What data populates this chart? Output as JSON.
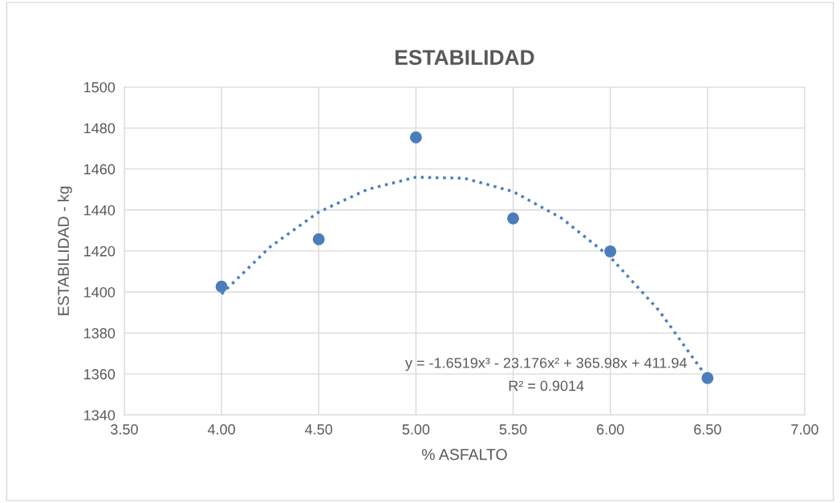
{
  "chart_data": {
    "type": "scatter",
    "title": "ESTABILIDAD",
    "xlabel": "% ASFALTO",
    "ylabel": "ESTABILIDAD - kg",
    "x": [
      4.0,
      4.5,
      5.0,
      5.5,
      6.0,
      6.5
    ],
    "series": [
      {
        "color": "#4a7ebb",
        "marker": "circle",
        "values": [
          1402.6,
          1425.7,
          1475.4,
          1435.9,
          1419.8,
          1358
        ]
      },
      {
        "type": "line",
        "color": "#4a7ebb",
        "line_style": "dotted",
        "marker": "none",
        "x": [
          4.0,
          4.25,
          4.5,
          4.75,
          5.0,
          5.25,
          5.5,
          5.75,
          6.0,
          6.25,
          6.5
        ],
        "values": [
          1399,
          1422,
          1439,
          1450,
          1456,
          1455.5,
          1449,
          1436,
          1417,
          1391,
          1358
        ]
      }
    ],
    "annotations": [
      "y = -1.6519x³ - 23.176x² + 365.98x + 411.94",
      "R² = 0.9014"
    ],
    "xlim": [
      3.5,
      7.0
    ],
    "xticks": [
      {
        "value": 3.5,
        "label": "3.50"
      },
      {
        "value": 4.0,
        "label": "4.00"
      },
      {
        "value": 4.5,
        "label": "4.50"
      },
      {
        "value": 5.0,
        "label": "5.00"
      },
      {
        "value": 5.5,
        "label": "5.50"
      },
      {
        "value": 6.0,
        "label": "6.00"
      },
      {
        "value": 6.5,
        "label": "6.50"
      },
      {
        "value": 7.0,
        "label": "7.00"
      }
    ],
    "ylim": [
      1340,
      1500
    ],
    "yticks": [
      1340,
      1360,
      1380,
      1400,
      1420,
      1440,
      1460,
      1480,
      1500
    ],
    "grid": true,
    "legend": false
  }
}
